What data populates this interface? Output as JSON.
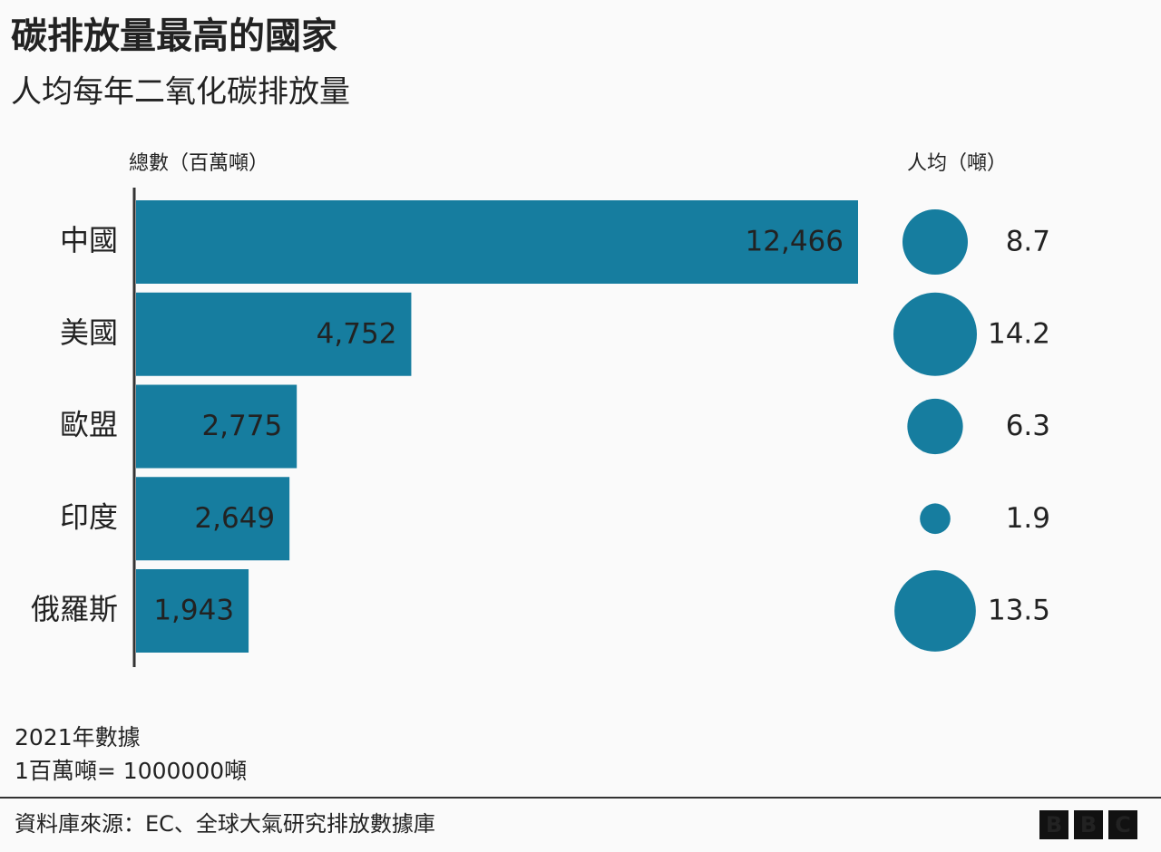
{
  "chart_data": {
    "type": "bar",
    "title": "碳排放量最高的國家",
    "subtitle": "人均每年二氧化碳排放量",
    "categories": [
      "中國",
      "美國",
      "歐盟",
      "印度",
      "俄羅斯"
    ],
    "series": [
      {
        "name": "總數（百萬噸）",
        "type": "bar",
        "color": "#167d9f",
        "values": [
          12466,
          4752,
          2775,
          2649,
          1943
        ],
        "value_labels": [
          "12,466",
          "4,752",
          "2,775",
          "2,649",
          "1,943"
        ]
      },
      {
        "name": "人均（噸）",
        "type": "bubble",
        "color": "#167d9f",
        "values": [
          8.7,
          14.2,
          6.3,
          1.9,
          13.5
        ]
      }
    ],
    "notes": [
      "2021年數據",
      "1百萬噸= 1000000噸"
    ],
    "source": "資料庫來源：EC、全球大氣研究排放數據庫",
    "logo": [
      "B",
      "B",
      "C"
    ]
  }
}
